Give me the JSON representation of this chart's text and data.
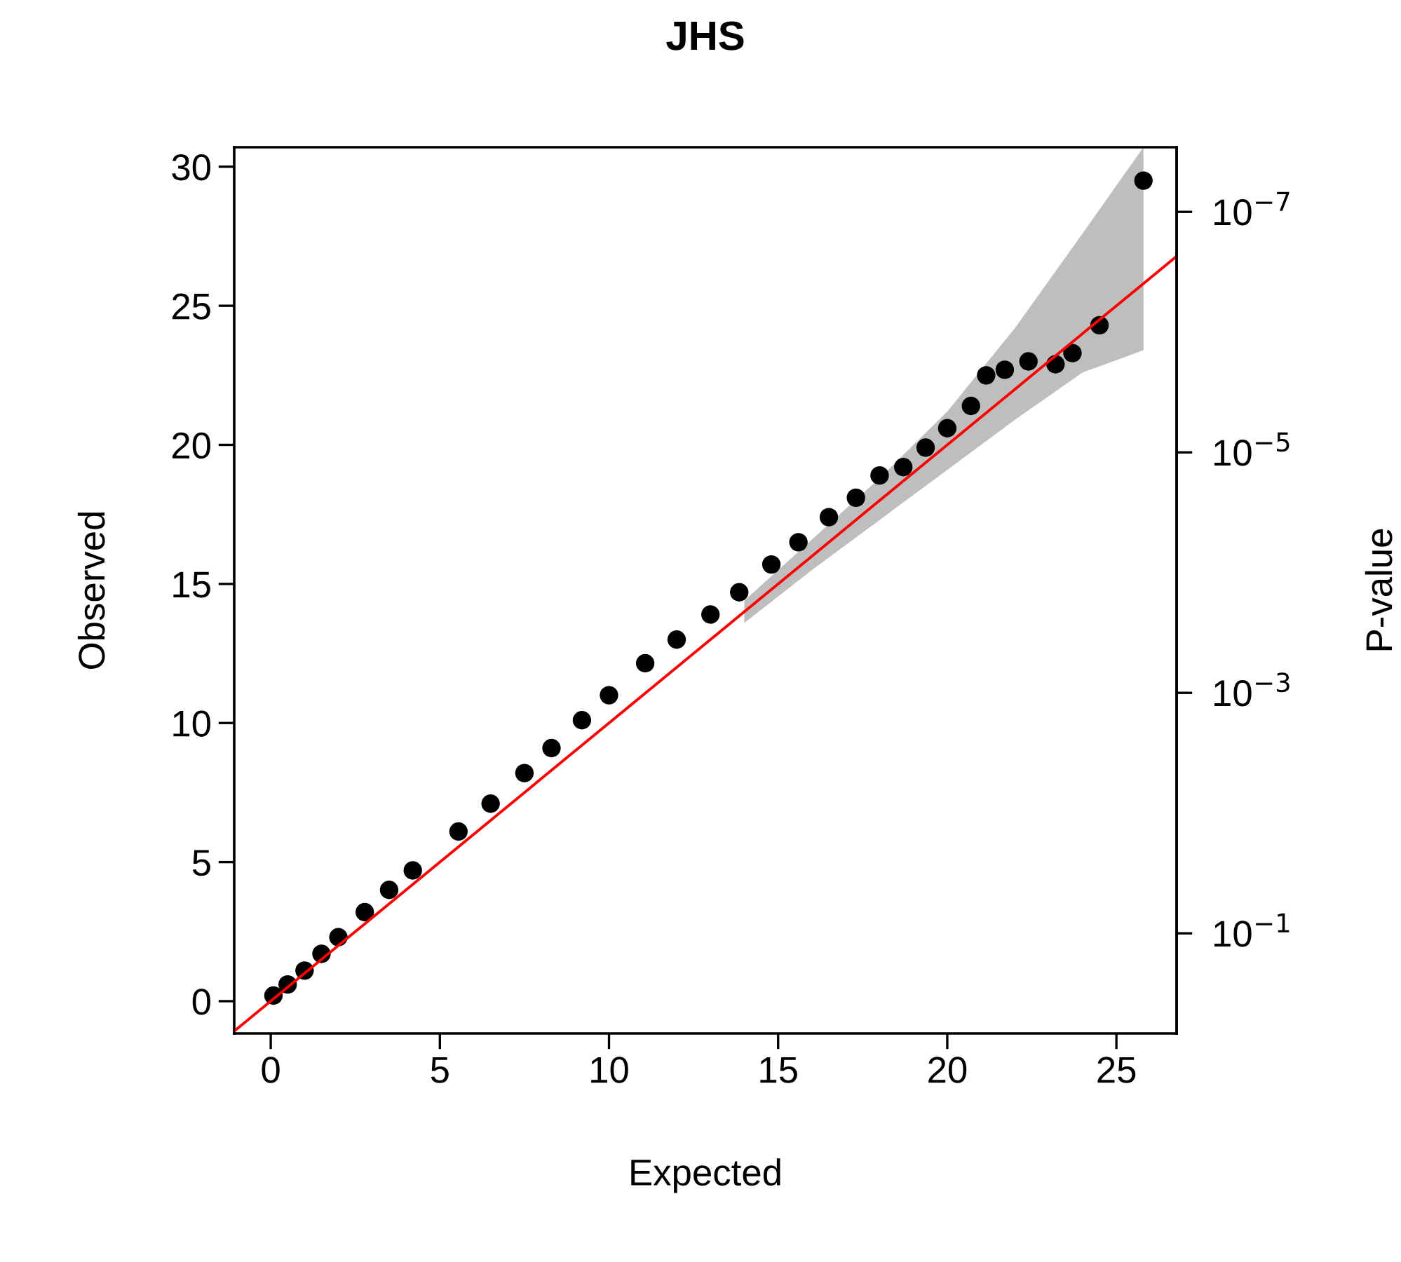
{
  "chart_data": {
    "type": "scatter",
    "title": "JHS",
    "xlabel": "Expected",
    "ylabel": "Observed",
    "y2label": "P-value",
    "xlim": [
      -1.08,
      26.78
    ],
    "ylim": [
      -1.16,
      30.7
    ],
    "xticks": [
      0,
      5,
      10,
      15,
      20,
      25
    ],
    "yticks": [
      0,
      5,
      10,
      15,
      20,
      25,
      30
    ],
    "log": "y2",
    "y2lim": [
      0.68,
      2.9e-08
    ],
    "y2ticks": [
      {
        "value": 1e-07,
        "label": "10$^{−7}$"
      },
      {
        "value": 1e-05,
        "label": "10$^{−5}$"
      },
      {
        "value": 0.001,
        "label": "10$^{−3}$"
      },
      {
        "value": 0.1,
        "label": "10$^{−1}$"
      }
    ],
    "grid": false,
    "legend": false,
    "marker": "circle",
    "series": [
      {
        "type": "line",
        "marker": "none",
        "color": "#ff0000",
        "x": [
          -1.08,
          14,
          16,
          18,
          20,
          22,
          24,
          25.8,
          26.78
        ],
        "values": [
          -1.08,
          14,
          16,
          18,
          20,
          22,
          24,
          25.8,
          26.78
        ],
        "lower": [
          null,
          13.6,
          15.5,
          17.3,
          19.1,
          20.9,
          22.6,
          23.4,
          null
        ],
        "upper": [
          null,
          14.4,
          16.6,
          18.8,
          21.2,
          24.2,
          27.6,
          30.7,
          null
        ]
      },
      {
        "color": "#000000",
        "x": [
          0.08,
          0.5,
          1.0,
          1.5,
          2.0,
          2.78,
          3.5,
          4.2,
          5.55,
          6.5,
          7.5,
          8.3,
          9.2,
          10.0,
          11.07,
          12.0,
          13.0,
          13.85,
          14.8,
          15.6,
          16.5,
          17.3,
          18.0,
          18.7,
          19.36,
          20.0,
          20.7,
          21.15,
          21.7,
          22.4,
          23.2,
          23.7,
          24.5,
          25.8
        ],
        "values": [
          0.2,
          0.6,
          1.1,
          1.7,
          2.3,
          3.2,
          4.0,
          4.7,
          6.1,
          7.1,
          8.2,
          9.1,
          10.1,
          11.0,
          12.15,
          13.0,
          13.9,
          14.7,
          15.7,
          16.5,
          17.4,
          18.1,
          18.9,
          19.2,
          19.9,
          20.6,
          21.4,
          22.5,
          22.7,
          23.0,
          22.9,
          23.3,
          24.3,
          29.5
        ]
      }
    ]
  }
}
